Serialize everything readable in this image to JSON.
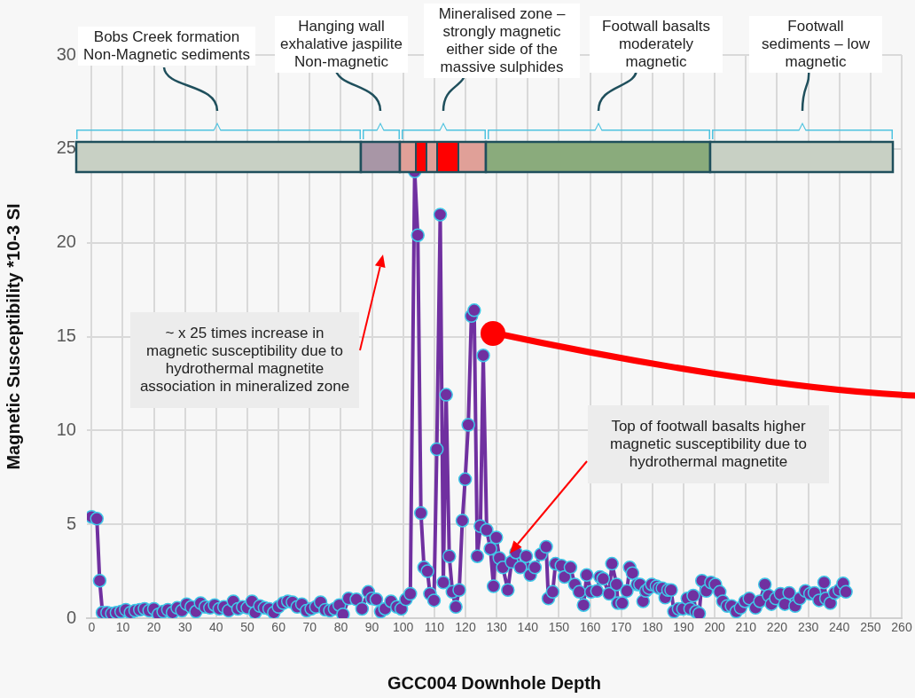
{
  "chart_data": {
    "type": "line",
    "xlabel": "GCC004 Downhole Depth",
    "ylabel": "Magnetic Susceptibility *10-3 SI",
    "x": [
      0,
      1.7,
      2.6,
      3.5,
      5,
      6.5,
      8,
      9.5,
      11,
      12.5,
      14,
      15.5,
      17,
      18.5,
      20,
      21.5,
      23,
      24.5,
      26,
      27.5,
      29,
      30.5,
      32,
      33.5,
      35,
      36.5,
      38,
      39.5,
      41,
      42.5,
      44,
      45.5,
      47,
      48.5,
      50,
      51.5,
      52.5,
      54,
      55.5,
      57,
      58.5,
      60,
      61.5,
      63,
      64.5,
      66,
      67.5,
      69,
      70.5,
      72,
      73.5,
      75,
      76.5,
      78,
      79.5,
      80.7,
      82.5,
      85,
      86.8,
      88.8,
      90,
      91.4,
      92.8,
      94.2,
      96.1,
      98,
      99.4,
      100.9,
      102.3,
      103.7,
      104.7,
      105.7,
      106.7,
      107.8,
      108.6,
      109.9,
      110.8,
      111.9,
      112.9,
      113.8,
      114.8,
      115.8,
      116.9,
      118,
      119,
      119.9,
      120.9,
      121.9,
      122.8,
      123.8,
      124.8,
      125.7,
      126.8,
      128,
      129,
      129.9,
      130.9,
      132,
      133.6,
      134.8,
      136.2,
      137.6,
      139.5,
      140.8,
      142.3,
      144.2,
      145.9,
      146.6,
      148,
      148.9,
      150.8,
      151.8,
      153.7,
      155.1,
      156.5,
      157.9,
      158.9,
      160.3,
      162.2,
      163.2,
      164.2,
      166.1,
      167,
      168.5,
      168.9,
      170.3,
      171.8,
      172.7,
      173.6,
      175.1,
      176,
      177,
      177.9,
      178.9,
      179.8,
      181.3,
      182.2,
      183.2,
      184.1,
      185,
      186,
      186.9,
      188.4,
      189.8,
      191.2,
      192.1,
      193.1,
      194,
      195,
      195.9,
      197.3,
      198.8,
      200.2,
      201.6,
      202.6,
      204,
      205.4,
      206.9,
      208.3,
      209.7,
      211.1,
      213.1,
      214.5,
      216.1,
      217.3,
      218.2,
      219.6,
      221.1,
      222.5,
      223.9,
      225.8,
      227.3,
      229.1,
      230.6,
      232,
      233.5,
      235.1,
      235.7,
      237.1,
      238.5,
      240,
      241.2,
      242.1
    ],
    "series": [
      {
        "color": "#7030a0",
        "values": [
          5.4,
          5.3,
          2.0,
          0.3,
          0.3,
          0.25,
          0.3,
          0.35,
          0.45,
          0.3,
          0.4,
          0.45,
          0.5,
          0.4,
          0.5,
          0.2,
          0.35,
          0.45,
          0.3,
          0.55,
          0.4,
          0.75,
          0.6,
          0.35,
          0.8,
          0.6,
          0.55,
          0.7,
          0.5,
          0.6,
          0.4,
          0.9,
          0.5,
          0.6,
          0.55,
          0.9,
          0.3,
          0.65,
          0.55,
          0.5,
          0.3,
          0.6,
          0.8,
          0.9,
          0.85,
          0.6,
          0.75,
          0.4,
          0.5,
          0.6,
          0.85,
          0.45,
          0.4,
          0.5,
          0.7,
          0.2,
          1.05,
          1.0,
          0.5,
          1.4,
          1.05,
          1.0,
          0.35,
          0.5,
          0.9,
          0.6,
          0.5,
          1.0,
          1.3,
          23.8,
          20.4,
          5.6,
          2.7,
          2.5,
          1.3,
          0.95,
          9.0,
          21.5,
          1.9,
          11.9,
          3.3,
          1.4,
          0.6,
          1.5,
          5.2,
          7.4,
          10.3,
          16.1,
          16.4,
          3.3,
          4.9,
          14.0,
          4.7,
          3.7,
          1.7,
          4.3,
          3.2,
          2.7,
          1.5,
          3.0,
          3.5,
          2.7,
          3.3,
          2.3,
          2.7,
          3.4,
          3.8,
          1.05,
          1.4,
          2.9,
          2.8,
          2.2,
          2.7,
          1.8,
          1.4,
          0.7,
          2.3,
          1.4,
          1.45,
          2.2,
          2.1,
          1.3,
          2.9,
          1.8,
          0.8,
          0.8,
          1.45,
          2.7,
          2.4,
          1.8,
          1.8,
          0.9,
          1.45,
          1.6,
          1.8,
          1.7,
          1.6,
          1.6,
          1.1,
          1.5,
          1.5,
          0.35,
          0.5,
          0.5,
          1.05,
          0.5,
          1.2,
          0.35,
          0.25,
          2.0,
          1.45,
          1.9,
          1.8,
          1.4,
          0.9,
          0.65,
          0.65,
          0.35,
          0.55,
          0.9,
          1.05,
          0.55,
          0.9,
          1.8,
          1.2,
          0.75,
          1.05,
          1.3,
          0.75,
          1.35,
          0.65,
          1.05,
          1.45,
          1.3,
          1.35,
          0.95,
          1.9,
          1.05,
          0.8,
          1.35,
          1.5,
          1.85,
          1.4
        ]
      }
    ],
    "xlim": [
      -1.5,
      260
    ],
    "xticks": [
      0,
      10,
      20,
      30,
      40,
      50,
      60,
      70,
      80,
      90,
      100,
      110,
      120,
      130,
      140,
      150,
      160,
      170,
      180,
      190,
      200,
      210,
      220,
      230,
      240,
      250,
      260
    ],
    "ylim": [
      0,
      30
    ],
    "yticks": [
      0,
      5,
      10,
      15,
      20,
      25,
      30
    ],
    "grid": true,
    "legend": false,
    "marker": "circle",
    "annotations": [
      "Bobs Creek formation Non-Magnetic sediments",
      "Hanging wall exhalative jaspilite Non-magnetic",
      "Mineralised zone – strongly magnetic either side of the massive sulphides",
      "Footwall basalts moderately magnetic",
      "Footwall sediments – low magnetic",
      "~ x 25 times increase in magnetic susceptibility due to hydrothermal magnetite association in mineralized zone",
      "Top of footwall basalts higher magnetic susceptibility due to hydrothermal magnetite"
    ]
  }
}
